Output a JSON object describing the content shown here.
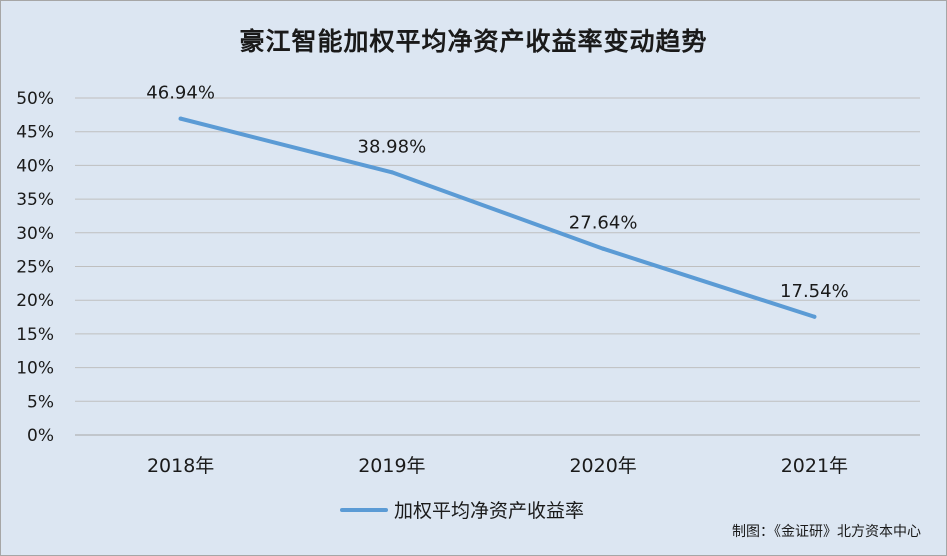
{
  "chart_data": {
    "type": "line",
    "title": "豪江智能加权平均净资产收益率变动趋势",
    "categories": [
      "2018年",
      "2019年",
      "2020年",
      "2021年"
    ],
    "series": [
      {
        "name": "加权平均净资产收益率",
        "values": [
          46.94,
          38.98,
          27.64,
          17.54
        ],
        "labels": [
          "46.94%",
          "38.98%",
          "27.64%",
          "17.54%"
        ],
        "color": "#5b9bd5"
      }
    ],
    "ylim": [
      0,
      50
    ],
    "yticks": [
      "0%",
      "5%",
      "10%",
      "15%",
      "20%",
      "25%",
      "30%",
      "35%",
      "40%",
      "45%",
      "50%"
    ],
    "ytick_values": [
      0,
      5,
      10,
      15,
      20,
      25,
      30,
      35,
      40,
      45,
      50
    ],
    "grid": true,
    "legend_position": "bottom-center"
  },
  "source_note": "制图：《金证研》北方资本中心"
}
